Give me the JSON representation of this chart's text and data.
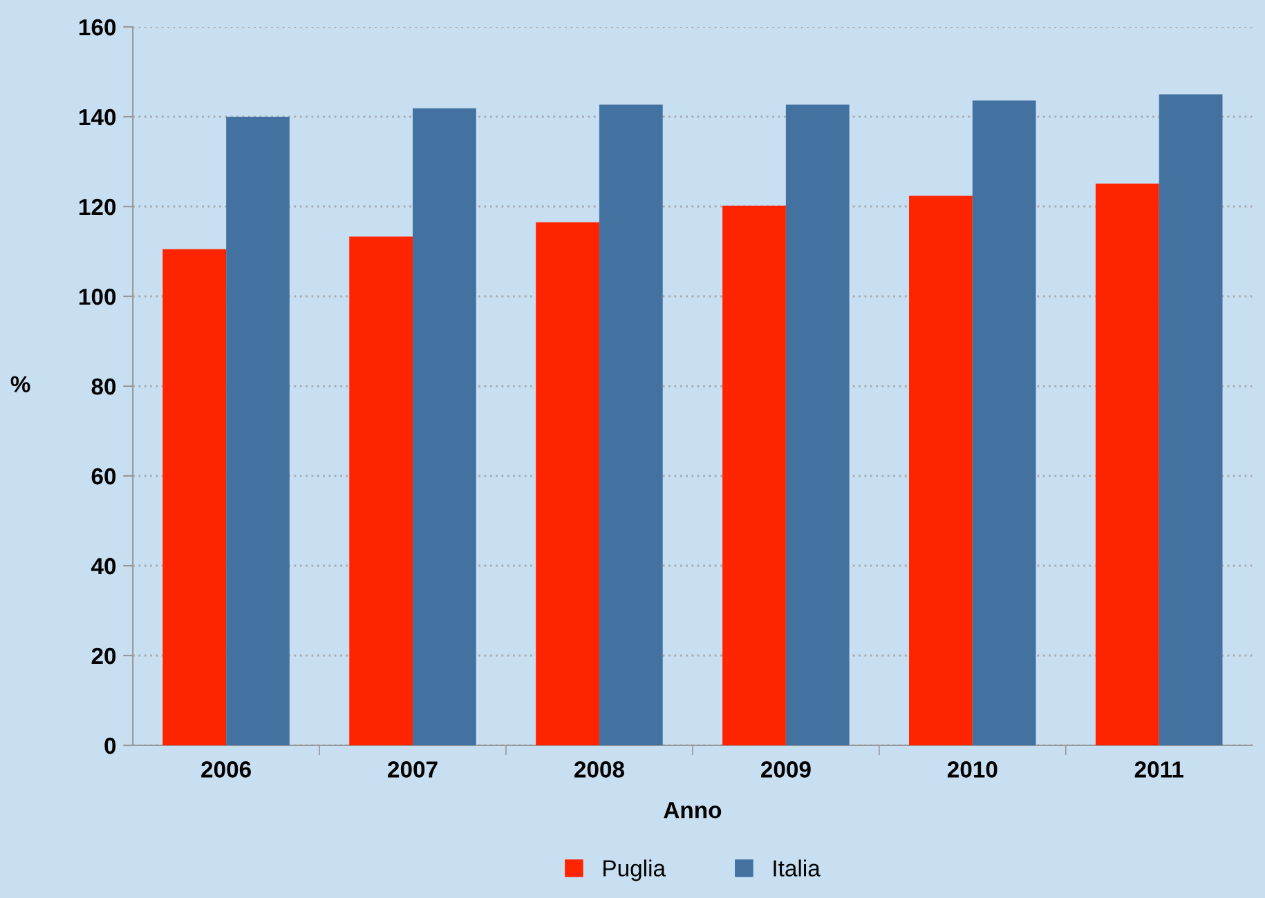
{
  "chart_data": {
    "type": "bar",
    "xlabel": "Anno",
    "ylabel": "%",
    "categories": [
      "2006",
      "2007",
      "2008",
      "2009",
      "2010",
      "2011"
    ],
    "series": [
      {
        "name": "Puglia",
        "color": "#ff2400",
        "values": [
          110.5,
          113.3,
          116.5,
          120.2,
          122.4,
          125.1
        ]
      },
      {
        "name": "Italia",
        "color": "#4472a0",
        "values": [
          140,
          141.9,
          142.7,
          142.7,
          143.6,
          145
        ]
      }
    ],
    "ylim": [
      0,
      160
    ],
    "yticks": [
      0,
      20,
      40,
      60,
      80,
      100,
      120,
      140,
      160
    ],
    "grid": "y",
    "legend": "bottom"
  }
}
